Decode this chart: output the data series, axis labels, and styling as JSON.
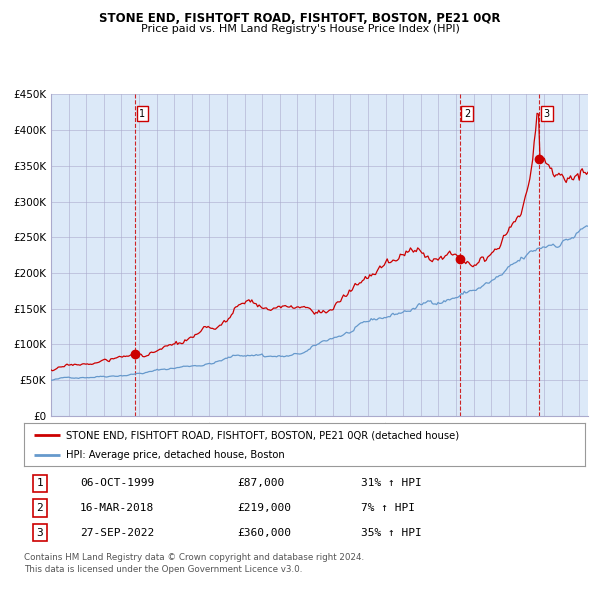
{
  "title": "STONE END, FISHTOFT ROAD, FISHTOFT, BOSTON, PE21 0QR",
  "subtitle": "Price paid vs. HM Land Registry's House Price Index (HPI)",
  "legend_line1": "STONE END, FISHTOFT ROAD, FISHTOFT, BOSTON, PE21 0QR (detached house)",
  "legend_line2": "HPI: Average price, detached house, Boston",
  "table_rows": [
    {
      "num": "1",
      "date": "06-OCT-1999",
      "price": "£87,000",
      "change": "31% ↑ HPI"
    },
    {
      "num": "2",
      "date": "16-MAR-2018",
      "price": "£219,000",
      "change": "7% ↑ HPI"
    },
    {
      "num": "3",
      "date": "27-SEP-2022",
      "price": "£360,000",
      "change": "35% ↑ HPI"
    }
  ],
  "footnote1": "Contains HM Land Registry data © Crown copyright and database right 2024.",
  "footnote2": "This data is licensed under the Open Government Licence v3.0.",
  "plot_bg_color": "#dce9f8",
  "red_line_color": "#cc0000",
  "blue_line_color": "#6699cc",
  "dashed_line_color": "#cc0000",
  "marker_color": "#cc0000",
  "ylim": [
    0,
    450000
  ],
  "yticks": [
    0,
    50000,
    100000,
    150000,
    200000,
    250000,
    300000,
    350000,
    400000,
    450000
  ],
  "ytick_labels": [
    "£0",
    "£50K",
    "£100K",
    "£150K",
    "£200K",
    "£250K",
    "£300K",
    "£350K",
    "£400K",
    "£450K"
  ],
  "sale_dates": [
    1999.77,
    2018.21,
    2022.74
  ],
  "sale_prices": [
    87000,
    219000,
    360000
  ],
  "sale_labels": [
    "1",
    "2",
    "3"
  ],
  "xmin": 1995.0,
  "xmax": 2025.5
}
